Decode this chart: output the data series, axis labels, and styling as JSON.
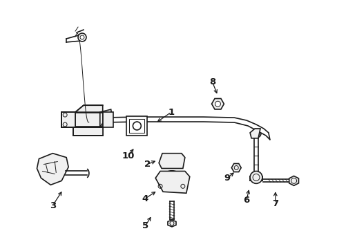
{
  "bg_color": "#ffffff",
  "line_color": "#1a1a1a",
  "lw": 1.2,
  "tlw": 0.7,
  "labels": {
    "1": [
      248,
      162,
      225,
      178
    ],
    "2": [
      213,
      238,
      228,
      232
    ],
    "3": [
      75,
      298,
      90,
      275
    ],
    "4": [
      210,
      288,
      228,
      276
    ],
    "5": [
      210,
      328,
      220,
      312
    ],
    "6": [
      358,
      290,
      362,
      272
    ],
    "7": [
      400,
      295,
      400,
      275
    ],
    "8": [
      308,
      118,
      316,
      138
    ],
    "9": [
      330,
      258,
      342,
      248
    ],
    "10": [
      185,
      226,
      195,
      213
    ]
  }
}
